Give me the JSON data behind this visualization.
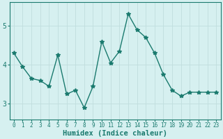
{
  "x": [
    0,
    1,
    2,
    3,
    4,
    5,
    6,
    7,
    8,
    9,
    10,
    11,
    12,
    13,
    14,
    15,
    16,
    17,
    18,
    19,
    20,
    21,
    22,
    23
  ],
  "y": [
    4.3,
    3.95,
    3.65,
    3.6,
    3.45,
    4.25,
    3.25,
    3.35,
    2.9,
    3.45,
    4.6,
    4.05,
    4.35,
    5.3,
    4.9,
    4.7,
    4.3,
    3.75,
    3.35,
    3.2,
    3.3,
    3.3,
    3.3,
    3.3
  ],
  "line_color": "#1a7a6e",
  "marker": "*",
  "marker_size": 4,
  "bg_color": "#d6f0f0",
  "grid_color": "#c0dede",
  "xlabel": "Humidex (Indice chaleur)",
  "ylim": [
    2.6,
    5.6
  ],
  "xlim": [
    -0.5,
    23.5
  ],
  "yticks": [
    3,
    4,
    5
  ],
  "xticks": [
    0,
    1,
    2,
    3,
    4,
    5,
    6,
    7,
    8,
    9,
    10,
    11,
    12,
    13,
    14,
    15,
    16,
    17,
    18,
    19,
    20,
    21,
    22,
    23
  ],
  "tick_label_fontsize": 5.5,
  "xlabel_fontsize": 7.5,
  "linewidth": 1.0
}
